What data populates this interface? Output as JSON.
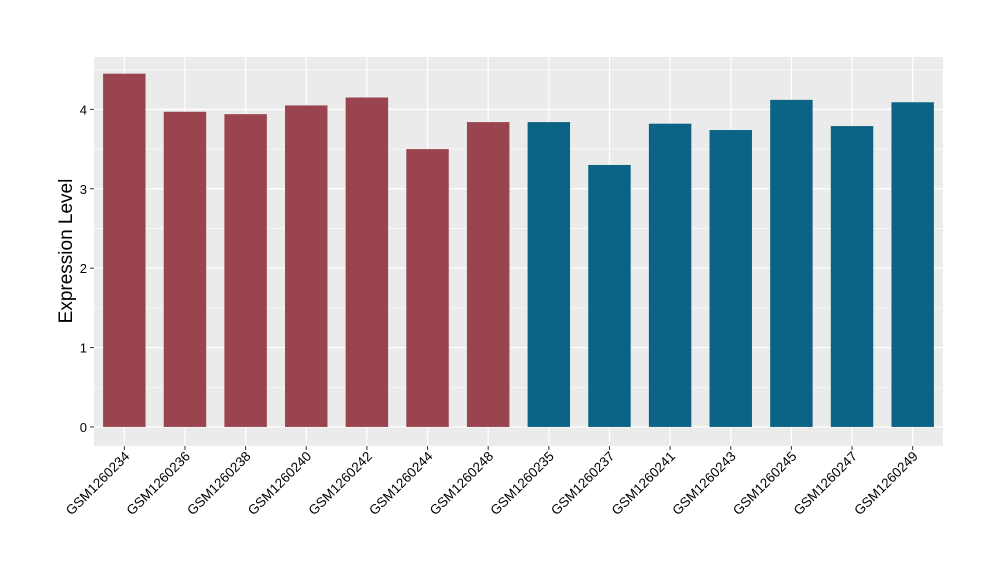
{
  "chart_data": {
    "type": "bar",
    "title": "",
    "xlabel": "",
    "ylabel": "Expression Level",
    "ylim": [
      -0.24,
      4.66
    ],
    "y_ticks": [
      0,
      1,
      2,
      3,
      4
    ],
    "grid": true,
    "legend": "none",
    "categories": [
      "GSM1260234",
      "GSM1260236",
      "GSM1260238",
      "GSM1260240",
      "GSM1260242",
      "GSM1260244",
      "GSM1260248",
      "GSM1260235",
      "GSM1260237",
      "GSM1260241",
      "GSM1260243",
      "GSM1260245",
      "GSM1260247",
      "GSM1260249"
    ],
    "values": [
      4.45,
      3.97,
      3.94,
      4.05,
      4.15,
      3.5,
      3.84,
      3.84,
      3.3,
      3.82,
      3.74,
      4.12,
      3.79,
      4.09
    ],
    "bar_colors": [
      "#99444f",
      "#99444f",
      "#99444f",
      "#99444f",
      "#99444f",
      "#99444f",
      "#99444f",
      "#0b6485",
      "#0b6485",
      "#0b6485",
      "#0b6485",
      "#0b6485",
      "#0b6485",
      "#0b6485"
    ],
    "panel_background": "#ebebeb",
    "grid_color": "#ffffff",
    "axis_text_color": "#000000"
  }
}
